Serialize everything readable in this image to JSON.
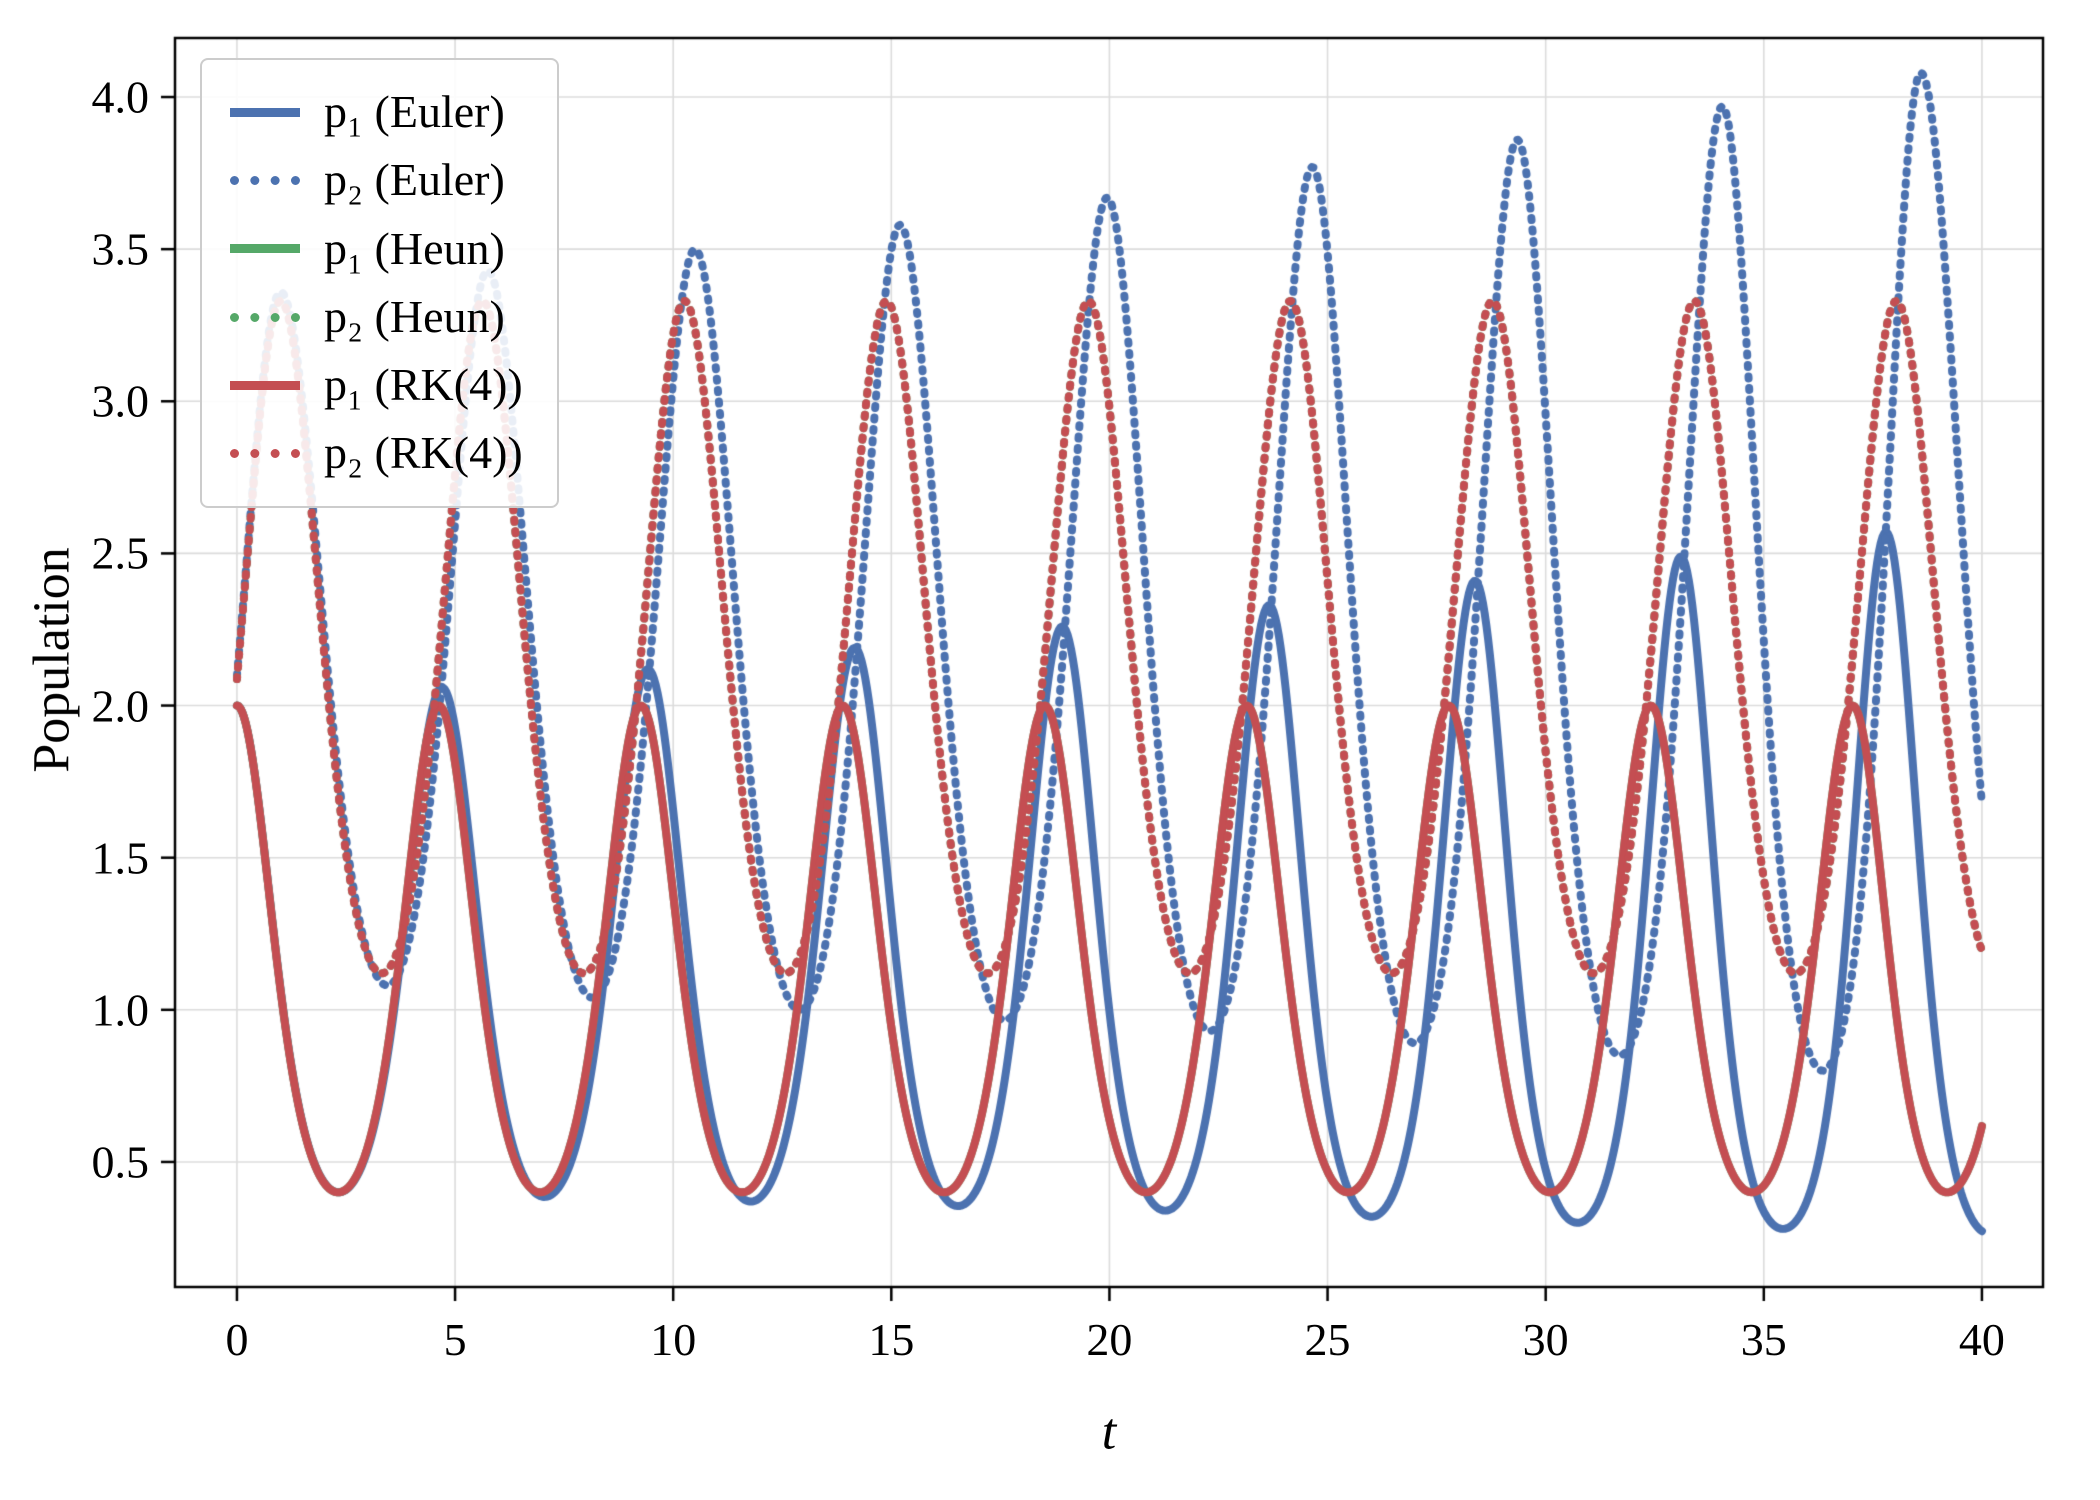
{
  "figure": {
    "background": "#ffffff"
  },
  "chart_data": {
    "type": "line",
    "title": "",
    "xlabel": "t",
    "ylabel": "Population",
    "xlim": [
      -1.42,
      41.4
    ],
    "ylim": [
      0.089,
      4.194
    ],
    "grid": true,
    "grid_color": "#dcdcdc",
    "spine_color": "#000000",
    "legend": {
      "position": "upper-left"
    },
    "xticks": {
      "values": [
        0,
        5,
        10,
        15,
        20,
        25,
        30,
        35,
        40
      ],
      "labels": [
        "0",
        "5",
        "10",
        "15",
        "20",
        "25",
        "30",
        "35",
        "40"
      ]
    },
    "yticks": {
      "values": [
        0.5,
        1.0,
        1.5,
        2.0,
        2.5,
        3.0,
        3.5,
        4.0
      ],
      "labels": [
        "0.5",
        "1.0",
        "1.5",
        "2.0",
        "2.5",
        "3.0",
        "3.5",
        "4.0"
      ]
    },
    "interpolation": "log-cosine between listed extrema (t, value)",
    "t_range": [
      0,
      40
    ],
    "series": [
      {
        "name": "p1-euler",
        "label": "p₁ (Euler)",
        "color": "#4C72B0",
        "style": "solid",
        "extrema": [
          [
            -2.31,
            0.4
          ],
          [
            0,
            2.0
          ],
          [
            2.33,
            0.4
          ],
          [
            4.7,
            2.06
          ],
          [
            7.05,
            0.385
          ],
          [
            9.42,
            2.12
          ],
          [
            11.78,
            0.37
          ],
          [
            14.16,
            2.19
          ],
          [
            16.53,
            0.355
          ],
          [
            18.92,
            2.26
          ],
          [
            21.28,
            0.34
          ],
          [
            23.66,
            2.33
          ],
          [
            26.01,
            0.32
          ],
          [
            28.38,
            2.41
          ],
          [
            30.73,
            0.3
          ],
          [
            33.1,
            2.49
          ],
          [
            35.44,
            0.28
          ],
          [
            37.8,
            2.57
          ],
          [
            40.2,
            0.262
          ]
        ]
      },
      {
        "name": "p2-euler",
        "label": "p₂ (Euler)",
        "color": "#4C72B0",
        "style": "dotted",
        "extrema": [
          [
            -1.2,
            1.12
          ],
          [
            1.0,
            3.36
          ],
          [
            3.45,
            1.08
          ],
          [
            5.75,
            3.43
          ],
          [
            8.15,
            1.04
          ],
          [
            10.5,
            3.5
          ],
          [
            12.9,
            1.0
          ],
          [
            15.2,
            3.58
          ],
          [
            17.6,
            0.965
          ],
          [
            19.95,
            3.67
          ],
          [
            22.3,
            0.93
          ],
          [
            24.65,
            3.77
          ],
          [
            27.0,
            0.89
          ],
          [
            29.35,
            3.86
          ],
          [
            31.7,
            0.85
          ],
          [
            34.05,
            3.97
          ],
          [
            36.35,
            0.8
          ],
          [
            38.6,
            4.08
          ],
          [
            41.3,
            0.76
          ]
        ]
      },
      {
        "name": "p1-heun",
        "label": "p₁ (Heun)",
        "color": "#55A868",
        "style": "solid",
        "extrema": [
          [
            -2.31,
            0.4
          ],
          [
            0,
            2.0
          ],
          [
            2.32,
            0.4
          ],
          [
            4.63,
            2.0
          ],
          [
            6.95,
            0.4
          ],
          [
            9.26,
            2.0
          ],
          [
            11.58,
            0.4
          ],
          [
            13.89,
            2.0
          ],
          [
            16.21,
            0.4
          ],
          [
            18.52,
            2.0
          ],
          [
            20.84,
            0.4
          ],
          [
            23.15,
            2.0
          ],
          [
            25.47,
            0.4
          ],
          [
            27.78,
            2.0
          ],
          [
            30.1,
            0.4
          ],
          [
            32.41,
            2.0
          ],
          [
            34.73,
            0.4
          ],
          [
            37.04,
            2.0
          ],
          [
            39.2,
            0.4
          ],
          [
            41.5,
            2.0
          ]
        ]
      },
      {
        "name": "p2-heun",
        "label": "p₂ (Heun)",
        "color": "#55A868",
        "style": "dotted",
        "extrema": [
          [
            -1.2,
            1.12
          ],
          [
            1.0,
            3.33
          ],
          [
            3.32,
            1.12
          ],
          [
            5.63,
            3.33
          ],
          [
            7.95,
            1.12
          ],
          [
            10.26,
            3.33
          ],
          [
            12.58,
            1.12
          ],
          [
            14.89,
            3.33
          ],
          [
            17.21,
            1.12
          ],
          [
            19.52,
            3.33
          ],
          [
            21.84,
            1.12
          ],
          [
            24.15,
            3.33
          ],
          [
            26.47,
            1.12
          ],
          [
            28.78,
            3.33
          ],
          [
            31.1,
            1.12
          ],
          [
            33.41,
            3.33
          ],
          [
            35.73,
            1.12
          ],
          [
            38.04,
            3.33
          ],
          [
            40.36,
            1.12
          ]
        ]
      },
      {
        "name": "p1-rk4",
        "label": "p₁ (RK(4))",
        "color": "#C44E52",
        "style": "solid",
        "extrema": [
          [
            -2.31,
            0.4
          ],
          [
            0,
            2.0
          ],
          [
            2.32,
            0.4
          ],
          [
            4.63,
            2.0
          ],
          [
            6.95,
            0.4
          ],
          [
            9.26,
            2.0
          ],
          [
            11.58,
            0.4
          ],
          [
            13.89,
            2.0
          ],
          [
            16.21,
            0.4
          ],
          [
            18.52,
            2.0
          ],
          [
            20.84,
            0.4
          ],
          [
            23.15,
            2.0
          ],
          [
            25.47,
            0.4
          ],
          [
            27.78,
            2.0
          ],
          [
            30.1,
            0.4
          ],
          [
            32.41,
            2.0
          ],
          [
            34.73,
            0.4
          ],
          [
            37.04,
            2.0
          ],
          [
            39.2,
            0.4
          ],
          [
            41.5,
            2.0
          ]
        ]
      },
      {
        "name": "p2-rk4",
        "label": "p₂ (RK(4))",
        "color": "#C44E52",
        "style": "dotted",
        "extrema": [
          [
            -1.2,
            1.12
          ],
          [
            1.0,
            3.33
          ],
          [
            3.32,
            1.12
          ],
          [
            5.63,
            3.33
          ],
          [
            7.95,
            1.12
          ],
          [
            10.26,
            3.33
          ],
          [
            12.58,
            1.12
          ],
          [
            14.89,
            3.33
          ],
          [
            17.21,
            1.12
          ],
          [
            19.52,
            3.33
          ],
          [
            21.84,
            1.12
          ],
          [
            24.15,
            3.33
          ],
          [
            26.47,
            1.12
          ],
          [
            28.78,
            3.33
          ],
          [
            31.1,
            1.12
          ],
          [
            33.41,
            3.33
          ],
          [
            35.73,
            1.12
          ],
          [
            38.04,
            3.33
          ],
          [
            40.36,
            1.12
          ]
        ]
      }
    ]
  }
}
